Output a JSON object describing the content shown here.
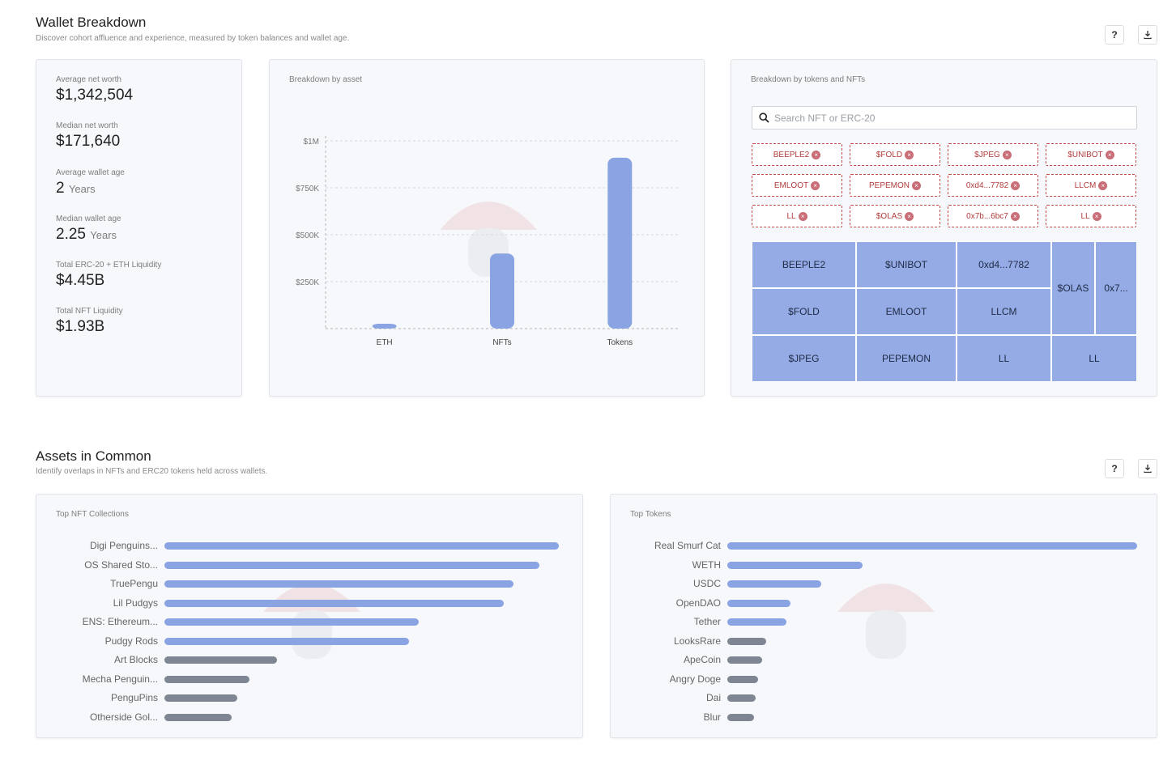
{
  "wallet": {
    "title": "Wallet Breakdown",
    "subtitle": "Discover cohort affluence and experience, measured by token balances and wallet age.",
    "help_label": "?",
    "stats": [
      {
        "label": "Average net worth",
        "value": "$1,342,504",
        "unit": ""
      },
      {
        "label": "Median net worth",
        "value": "$171,640",
        "unit": ""
      },
      {
        "label": "Average wallet age",
        "value": "2",
        "unit": "Years"
      },
      {
        "label": "Median wallet age",
        "value": "2.25",
        "unit": "Years"
      },
      {
        "label": "Total ERC-20 + ETH Liquidity",
        "value": "$4.45B",
        "unit": ""
      },
      {
        "label": "Total NFT Liquidity",
        "value": "$1.93B",
        "unit": ""
      }
    ],
    "asset_card_title": "Breakdown by asset",
    "tokens_card_title": "Breakdown by tokens and NFTs",
    "search_placeholder": "Search NFT or ERC-20",
    "chips": [
      "BEEPLE2",
      "$FOLD",
      "$JPEG",
      "$UNIBOT",
      "EMLOOT",
      "PEPEMON",
      "0xd4...7782",
      "LLCM",
      "LL",
      "$OLAS",
      "0x7b...6bc7",
      "LL"
    ],
    "treemap": [
      "BEEPLE2",
      "$UNIBOT",
      "0xd4...7782",
      "$OLAS",
      "0x7...",
      "$FOLD",
      "EMLOOT",
      "LLCM",
      "$JPEG",
      "PEPEMON",
      "LL",
      "LL"
    ]
  },
  "chart_data": {
    "type": "bar",
    "categories": [
      "ETH",
      "NFTs",
      "Tokens"
    ],
    "values": [
      8000,
      400000,
      910000
    ],
    "ylim": [
      0,
      1000000
    ],
    "yticks": [
      250000,
      500000,
      750000,
      1000000
    ],
    "ytick_labels": [
      "$250K",
      "$500K",
      "$750K",
      "$1M"
    ],
    "grid": true,
    "bar_color": "#8aa4e3"
  },
  "common": {
    "title": "Assets in Common",
    "subtitle": "Identify overlaps in NFTs and ERC20 tokens held across wallets.",
    "help_label": "?",
    "nft": {
      "title": "Top NFT Collections",
      "items": [
        {
          "label": "Digi Penguins...",
          "value": 100
        },
        {
          "label": "OS Shared Sto...",
          "value": 95
        },
        {
          "label": "TruePengu",
          "value": 88.5
        },
        {
          "label": "Lil Pudgys",
          "value": 86
        },
        {
          "label": "ENS: Ethereum...",
          "value": 64.5
        },
        {
          "label": "Pudgy Rods",
          "value": 62
        },
        {
          "label": "Art Blocks",
          "value": 28.5
        },
        {
          "label": "Mecha Penguin...",
          "value": 21.5
        },
        {
          "label": "PenguPins",
          "value": 18.5
        },
        {
          "label": "Otherside Gol...",
          "value": 17
        }
      ]
    },
    "tokens": {
      "title": "Top Tokens",
      "items": [
        {
          "label": "Real Smurf Cat",
          "value": 100
        },
        {
          "label": "WETH",
          "value": 33
        },
        {
          "label": "USDC",
          "value": 23
        },
        {
          "label": "OpenDAO",
          "value": 15.5
        },
        {
          "label": "Tether",
          "value": 14.5
        },
        {
          "label": "LooksRare",
          "value": 9.5
        },
        {
          "label": "ApeCoin",
          "value": 8.5
        },
        {
          "label": "Angry Doge",
          "value": 7.5
        },
        {
          "label": "Dai",
          "value": 7
        },
        {
          "label": "Blur",
          "value": 6.5
        }
      ]
    }
  }
}
